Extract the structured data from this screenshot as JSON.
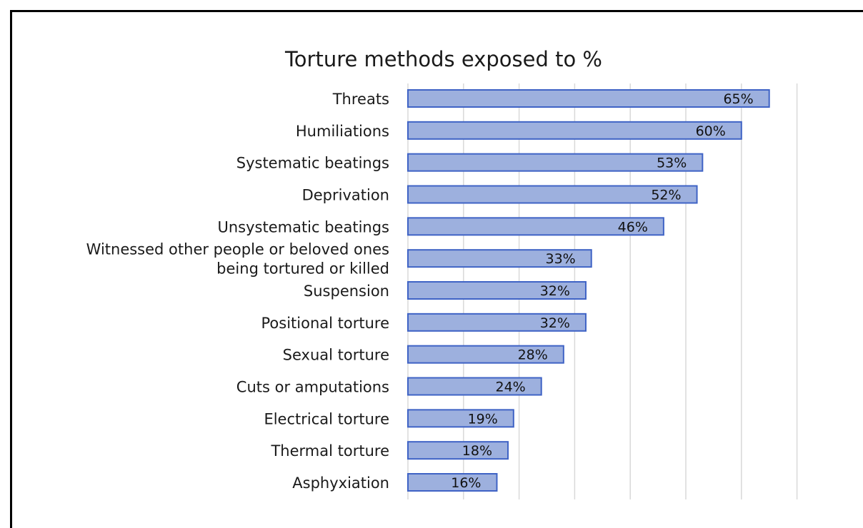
{
  "chart_data": {
    "type": "bar",
    "orientation": "horizontal",
    "title": "Torture methods exposed to %",
    "categories": [
      "Threats",
      "Humiliations",
      "Systematic beatings",
      "Deprivation",
      "Unsystematic beatings",
      "Witnessed other people or beloved ones being tortured or killed",
      "Suspension",
      "Positional torture",
      "Sexual torture",
      "Cuts or amputations",
      "Electrical torture",
      "Thermal torture",
      "Asphyxiation"
    ],
    "category_lines": [
      [
        "Threats"
      ],
      [
        "Humiliations"
      ],
      [
        "Systematic beatings"
      ],
      [
        "Deprivation"
      ],
      [
        "Unsystematic beatings"
      ],
      [
        "Witnessed other people or beloved ones",
        "being tortured or killed"
      ],
      [
        "Suspension"
      ],
      [
        "Positional torture"
      ],
      [
        "Sexual torture"
      ],
      [
        "Cuts or amputations"
      ],
      [
        "Electrical torture"
      ],
      [
        "Thermal torture"
      ],
      [
        "Asphyxiation"
      ]
    ],
    "values": [
      65,
      60,
      53,
      52,
      46,
      33,
      32,
      32,
      28,
      24,
      19,
      18,
      16
    ],
    "data_labels": [
      "65%",
      "60%",
      "53%",
      "52%",
      "46%",
      "33%",
      "32%",
      "32%",
      "28%",
      "24%",
      "19%",
      "18%",
      "16%"
    ],
    "xlim": [
      0,
      70
    ],
    "xgrid_step": 10,
    "grid": true,
    "xaxis_tick_labels_visible": false,
    "colors": {
      "bar_fill": "#9db0de",
      "bar_stroke": "#3f63c5",
      "gridline": "#d9d9d9",
      "frame": "#000000"
    }
  }
}
